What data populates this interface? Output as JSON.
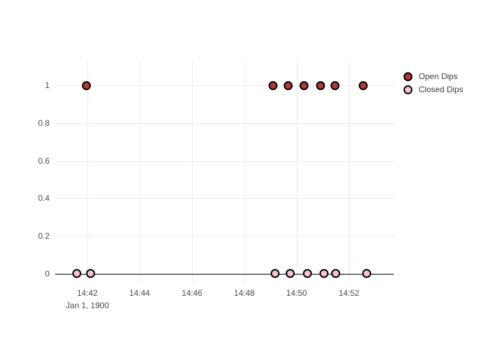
{
  "chart": {
    "background": "#ffffff",
    "grid_color": "#eaeaea",
    "zero_line_color": "#000000",
    "tick_text_color": "#4a4a4a",
    "legend_text_color": "#3c3c3c"
  },
  "chart_data": {
    "type": "scatter",
    "title": "",
    "xlabel": "",
    "ylabel": "",
    "grid": true,
    "legend_position": "top-right",
    "x_axis": {
      "type": "time",
      "range": [
        "14:40:46",
        "14:53:43"
      ],
      "ticks": [
        "14:42",
        "14:44",
        "14:46",
        "14:48",
        "14:50",
        "14:52"
      ],
      "date_annotation": "Jan 1, 1900"
    },
    "y_axis": {
      "range": [
        -0.052,
        1.125
      ],
      "ticks": [
        "1",
        "0.8",
        "0.6",
        "0.4",
        "0.2",
        "0"
      ],
      "tick_values": [
        1,
        0.8,
        0.6,
        0.4,
        0.2,
        0
      ]
    },
    "series": [
      {
        "name": "Open Dips",
        "color": "#b03a3a",
        "marker_outline": "#000000",
        "y": 1,
        "x": [
          "14:41:58",
          "14:49:06",
          "14:49:40",
          "14:50:17",
          "14:50:55",
          "14:51:28",
          "14:52:33"
        ]
      },
      {
        "name": "Closed Dips",
        "color": "#f9c2cc",
        "marker_outline": "#000000",
        "y": 0,
        "x": [
          "14:41:36",
          "14:42:08",
          "14:49:10",
          "14:49:46",
          "14:50:25",
          "14:51:03",
          "14:51:30",
          "14:52:41"
        ]
      }
    ]
  }
}
